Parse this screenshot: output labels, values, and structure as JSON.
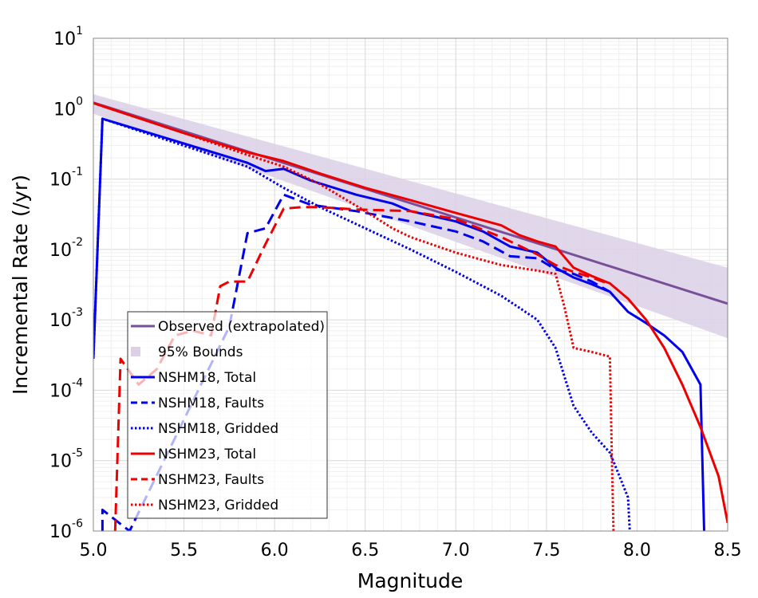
{
  "chart_data": {
    "type": "line",
    "title": "",
    "xlabel": "Magnitude",
    "ylabel": "Incremental Rate (/yr)",
    "xlim": [
      5.0,
      8.5
    ],
    "ylim": [
      1e-06,
      10
    ],
    "yscale": "log",
    "grid": true,
    "legend_position": "lower-left",
    "x_ticks": [
      {
        "value": 5.0,
        "label": "5.0"
      },
      {
        "value": 5.5,
        "label": "5.5"
      },
      {
        "value": 6.0,
        "label": "6.0"
      },
      {
        "value": 6.5,
        "label": "6.5"
      },
      {
        "value": 7.0,
        "label": "7.0"
      },
      {
        "value": 7.5,
        "label": "7.5"
      },
      {
        "value": 8.0,
        "label": "8.0"
      },
      {
        "value": 8.5,
        "label": "8.5"
      }
    ],
    "y_ticks": [
      {
        "exp": 1,
        "base": "10",
        "sup": "1"
      },
      {
        "exp": 0,
        "base": "10",
        "sup": "0"
      },
      {
        "exp": -1,
        "base": "10",
        "sup": "-1"
      },
      {
        "exp": -2,
        "base": "10",
        "sup": "-2"
      },
      {
        "exp": -3,
        "base": "10",
        "sup": "-3"
      },
      {
        "exp": -4,
        "base": "10",
        "sup": "-4"
      },
      {
        "exp": -5,
        "base": "10",
        "sup": "-5"
      },
      {
        "exp": -6,
        "base": "10",
        "sup": "-6"
      }
    ],
    "bounds": {
      "name": "95% Bounds",
      "color": "#dcd0e6",
      "x": [
        5.0,
        8.5
      ],
      "upper": [
        1.6,
        0.0055
      ],
      "lower": [
        0.85,
        0.00055
      ]
    },
    "series": [
      {
        "name": "Observed (extrapolated)",
        "color": "#7a4f9a",
        "dash": "solid",
        "x": [
          5.0,
          8.5
        ],
        "y": [
          1.22,
          0.0017
        ]
      },
      {
        "name": "NSHM18, Total",
        "color": "#0000ee",
        "dash": "solid",
        "x": [
          5.0,
          5.05,
          5.85,
          5.95,
          6.05,
          6.2,
          6.45,
          6.65,
          6.75,
          7.0,
          7.15,
          7.3,
          7.45,
          7.55,
          7.65,
          7.75,
          7.85,
          7.95,
          8.05,
          8.15,
          8.25,
          8.35,
          8.37
        ],
        "y": [
          0.00028,
          0.72,
          0.17,
          0.13,
          0.14,
          0.095,
          0.06,
          0.045,
          0.035,
          0.025,
          0.018,
          0.011,
          0.009,
          0.0055,
          0.004,
          0.0032,
          0.0025,
          0.0013,
          0.0009,
          0.0006,
          0.00035,
          0.00012,
          1e-06
        ]
      },
      {
        "name": "NSHM18, Faults",
        "color": "#0000ee",
        "dash": "dashed",
        "x": [
          5.05,
          5.05,
          5.2,
          5.75,
          5.85,
          5.95,
          6.05,
          6.2,
          6.45,
          6.75,
          7.0,
          7.15,
          7.3,
          7.45,
          7.55,
          7.65,
          7.75,
          7.85
        ],
        "y": [
          1e-06,
          2e-06,
          1e-06,
          0.0008,
          0.017,
          0.02,
          0.06,
          0.043,
          0.035,
          0.025,
          0.018,
          0.013,
          0.008,
          0.0075,
          0.0052,
          0.0045,
          0.0035,
          0.0025
        ]
      },
      {
        "name": "NSHM18, Gridded",
        "color": "#0000ee",
        "dash": "dotted",
        "x": [
          5.0,
          5.05,
          5.85,
          6.05,
          6.25,
          6.5,
          6.75,
          7.0,
          7.25,
          7.45,
          7.55,
          7.65,
          7.75,
          7.85,
          7.95,
          7.96
        ],
        "y": [
          0.00028,
          0.72,
          0.15,
          0.075,
          0.04,
          0.02,
          0.01,
          0.0048,
          0.0022,
          0.001,
          0.0004,
          6e-05,
          2.5e-05,
          1.3e-05,
          3e-06,
          1e-06
        ]
      },
      {
        "name": "NSHM23, Total",
        "color": "#ee0000",
        "dash": "solid",
        "x": [
          5.0,
          5.5,
          5.85,
          6.05,
          6.25,
          6.5,
          6.75,
          7.0,
          7.25,
          7.35,
          7.45,
          7.55,
          7.65,
          7.75,
          7.85,
          7.95,
          8.05,
          8.15,
          8.25,
          8.35,
          8.45,
          8.5
        ],
        "y": [
          1.2,
          0.45,
          0.24,
          0.18,
          0.12,
          0.075,
          0.05,
          0.033,
          0.022,
          0.016,
          0.013,
          0.011,
          0.0055,
          0.0042,
          0.0033,
          0.002,
          0.001,
          0.0004,
          0.00012,
          3e-05,
          6e-06,
          1.3e-06
        ]
      },
      {
        "name": "NSHM23, Faults",
        "color": "#ee0000",
        "dash": "dashed",
        "x": [
          5.12,
          5.15,
          5.25,
          5.35,
          5.45,
          5.55,
          5.65,
          5.7,
          5.75,
          5.85,
          5.95,
          6.05,
          6.15,
          6.25,
          6.45,
          6.75,
          7.0,
          7.25,
          7.45,
          7.55,
          7.65,
          7.75,
          7.85
        ],
        "y": [
          1e-06,
          0.00028,
          0.00012,
          0.0002,
          0.0006,
          0.0007,
          0.0006,
          0.003,
          0.0035,
          0.0035,
          0.012,
          0.038,
          0.04,
          0.04,
          0.037,
          0.035,
          0.027,
          0.015,
          0.0085,
          0.006,
          0.0048,
          0.004,
          0.0032
        ]
      },
      {
        "name": "NSHM23, Gridded",
        "color": "#ee0000",
        "dash": "dotted",
        "x": [
          5.0,
          5.5,
          5.85,
          6.05,
          6.25,
          6.5,
          6.65,
          6.75,
          7.0,
          7.25,
          7.45,
          7.55,
          7.6,
          7.65,
          7.75,
          7.85,
          7.86,
          7.87
        ],
        "y": [
          1.2,
          0.45,
          0.22,
          0.15,
          0.085,
          0.035,
          0.02,
          0.015,
          0.009,
          0.006,
          0.005,
          0.0045,
          0.0015,
          0.0004,
          0.00035,
          0.0003,
          1.5e-05,
          1e-06
        ]
      }
    ]
  }
}
